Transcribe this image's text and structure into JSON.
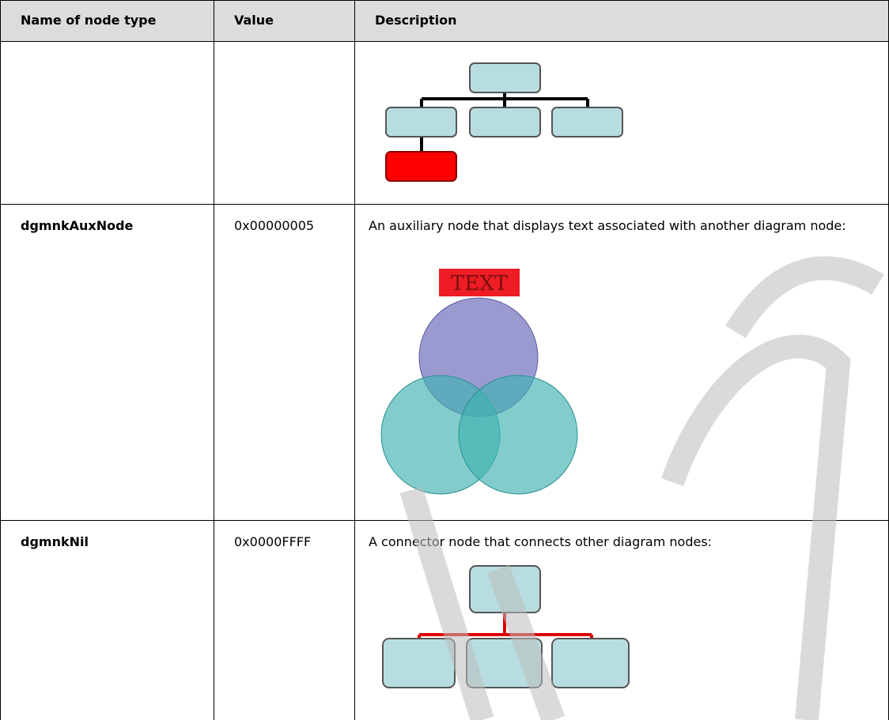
{
  "table": {
    "header": [
      "Name of node type",
      "Value",
      "Description"
    ],
    "rows": [
      {
        "name": "dgmnkAuxNode",
        "value": "0x00000005",
        "description": "An auxiliary node that displays text associated with another diagram node:",
        "diagram_text": "TEXT"
      },
      {
        "name": "dgmnkNil",
        "value": "0x0000FFFF",
        "description": "A connector node that connects other diagram nodes:"
      }
    ]
  }
}
